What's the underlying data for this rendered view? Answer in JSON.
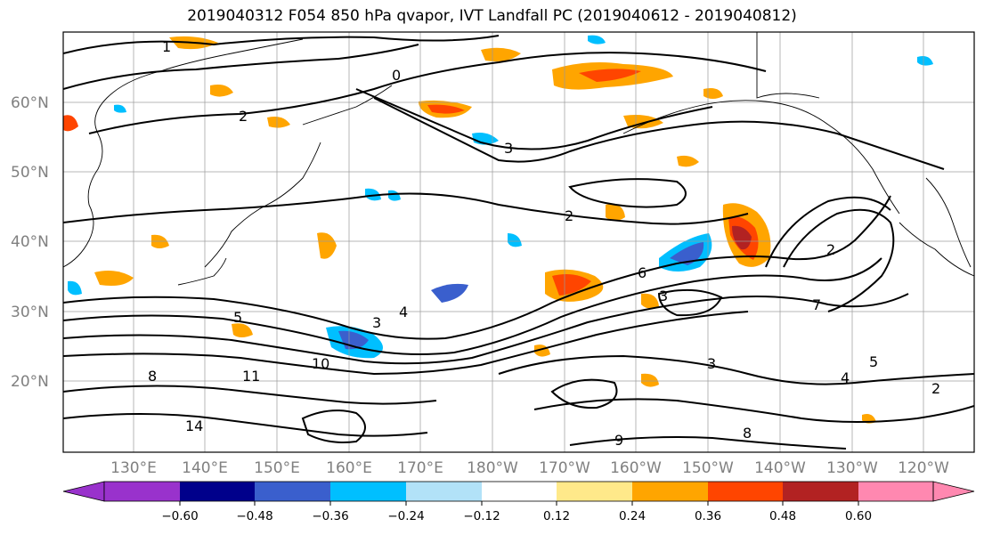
{
  "title": "2019040312 F054 850 hPa qvapor, IVT Landfall PC (2019040612 - 2019040812)",
  "map": {
    "lat_labels": [
      "60°N",
      "50°N",
      "40°N",
      "30°N",
      "20°N"
    ],
    "lon_labels": [
      "130°E",
      "140°E",
      "150°E",
      "160°E",
      "170°E",
      "180°W",
      "170°W",
      "160°W",
      "150°W",
      "140°W",
      "130°W",
      "120°W"
    ],
    "gridlines": true,
    "contour_labels": [
      "1",
      "2",
      "0",
      "3",
      "6",
      "2",
      "3",
      "4",
      "5",
      "7",
      "8",
      "10",
      "11",
      "14",
      "3",
      "2",
      "4",
      "5",
      "3",
      "2",
      "8",
      "9"
    ]
  },
  "colorbar": {
    "ticks": [
      "−0.60",
      "−0.48",
      "−0.36",
      "−0.24",
      "−0.12",
      "0.12",
      "0.24",
      "0.36",
      "0.48",
      "0.60"
    ],
    "colors": [
      "#9932CC",
      "#00008B",
      "#3A5FCD",
      "#00BFFF",
      "#B2E2F8",
      "#FFFFFF",
      "#FFE98A",
      "#FFA500",
      "#FF4500",
      "#B22222",
      "#FF88B0"
    ],
    "extend": "both"
  }
}
